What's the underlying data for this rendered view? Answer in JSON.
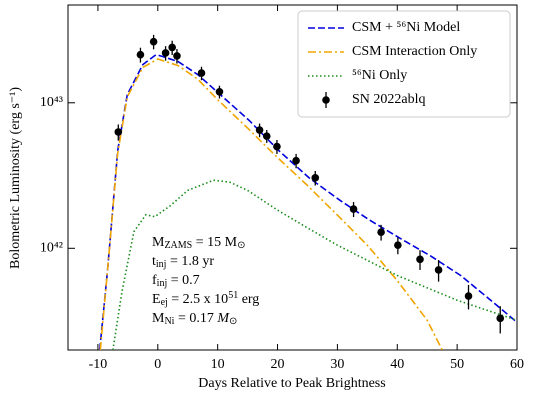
{
  "chart_data": {
    "type": "line",
    "xlabel": "Days Relative to Peak Brightness",
    "ylabel": "Bolometric Luminosity (erg s⁻¹)",
    "xlim": [
      -15,
      60
    ],
    "xticks": [
      -10,
      0,
      10,
      20,
      30,
      40,
      50,
      60
    ],
    "ylim": [
      2e+41,
      4.7e+43
    ],
    "yscale": "log",
    "yticks": [
      {
        "value": 1e+42,
        "label": "10⁴²"
      },
      {
        "value": 1e+43,
        "label": "10⁴³"
      }
    ],
    "legend": "upper right",
    "series": [
      {
        "name": "CSM + ⁵⁶Ni Model",
        "type": "line",
        "style": "dashed",
        "color": "#0000dd",
        "x": [
          -9.7,
          -8.4,
          -6.7,
          -5.1,
          -2.5,
          -0.3,
          0.8,
          3.4,
          6.7,
          10.1,
          15.2,
          20.2,
          25.3,
          30.4,
          35.4,
          40.5,
          45.5,
          50.6,
          55.6,
          60
        ],
        "values": [
          2e+41,
          7e+41,
          4.7e+42,
          1.14e+43,
          1.83e+43,
          2.14e+43,
          2.08e+43,
          1.92e+43,
          1.56e+43,
          1.17e+43,
          7.6e+42,
          4.7e+42,
          3.04e+42,
          2.14e+42,
          1.56e+42,
          1.17e+42,
          8.9e+41,
          6.5e+41,
          4.4e+41,
          3.1e+41
        ]
      },
      {
        "name": "CSM Interaction Only",
        "type": "line",
        "style": "dashdot",
        "color": "#f0a500",
        "x": [
          -9.6,
          -8.4,
          -6.7,
          -5.1,
          -2.5,
          0,
          3.4,
          6.7,
          10,
          15,
          20,
          25,
          30,
          35,
          40,
          45,
          47.5
        ],
        "values": [
          2e+41,
          7e+41,
          4.5e+42,
          1.1e+43,
          1.75e+43,
          2e+43,
          1.8e+43,
          1.45e+43,
          1.05e+43,
          6.7e+42,
          4.2e+42,
          2.7e+42,
          1.69e+42,
          1.05e+42,
          6e+41,
          3.2e+41,
          2e+41
        ]
      },
      {
        "name": "⁵⁶Ni Only",
        "type": "line",
        "style": "dotted",
        "color": "#1a8a1a",
        "x": [
          -7.5,
          -6,
          -4,
          -2,
          -0.5,
          2,
          5,
          9.3,
          12,
          15,
          20,
          25,
          30,
          40,
          50,
          60
        ],
        "values": [
          2e+41,
          5e+41,
          1.3e+42,
          1.7e+42,
          1.65e+42,
          1.95e+42,
          2.5e+42,
          2.94e+42,
          2.85e+42,
          2.5e+42,
          1.83e+42,
          1.38e+42,
          1.05e+42,
          6.5e+41,
          4.4e+41,
          3.2e+41
        ]
      },
      {
        "name": "SN 2022ablq",
        "type": "scatter",
        "color": "#000000",
        "x": [
          -6.6,
          -2.9,
          -0.7,
          1.3,
          2.4,
          3.2,
          7.3,
          10.3,
          17,
          18.2,
          19.9,
          23.1,
          26.3,
          32.7,
          37.3,
          40.1,
          43.8,
          46.9,
          51.9,
          57.2
        ],
        "values": [
          6.3e+42,
          2.14e+43,
          2.63e+43,
          2.2e+43,
          2.4e+43,
          2.1e+43,
          1.6e+43,
          1.19e+43,
          6.5e+42,
          5.9e+42,
          5e+42,
          4e+42,
          3.05e+42,
          1.86e+42,
          1.29e+42,
          1.05e+42,
          8.4e+41,
          7.1e+41,
          4.7e+41,
          3.3e+41
        ],
        "errors": [
          8e+41,
          2.5e+42,
          3e+42,
          2.5e+42,
          2.7e+42,
          2.4e+42,
          1.7e+42,
          1.2e+42,
          7e+41,
          6e+41,
          5.5e+41,
          4.5e+41,
          3.5e+41,
          2.2e+41,
          1.6e+41,
          1.4e+41,
          1.3e+41,
          1.2e+41,
          9e+40,
          7e+40
        ]
      }
    ],
    "annotation": [
      [
        {
          "t": "M"
        },
        {
          "t": "ZAMS",
          "s": "sub"
        },
        {
          "t": " = 15 M"
        },
        {
          "t": "⊙",
          "s": "sub"
        }
      ],
      [
        {
          "t": "t"
        },
        {
          "t": "inj",
          "s": "sub"
        },
        {
          "t": " = 1.8 yr"
        }
      ],
      [
        {
          "t": "f"
        },
        {
          "t": "inj",
          "s": "sub"
        },
        {
          "t": " = 0.7"
        }
      ],
      [
        {
          "t": "E"
        },
        {
          "t": "ej",
          "s": "sub"
        },
        {
          "t": " = 2.5 x 10"
        },
        {
          "t": "51",
          "s": "sup"
        },
        {
          "t": " erg"
        }
      ],
      [
        {
          "t": "M"
        },
        {
          "t": "Ni",
          "s": "sub"
        },
        {
          "t": " = 0.17 "
        },
        {
          "t": "M",
          "s": "it"
        },
        {
          "t": "⊙",
          "s": "sub"
        }
      ]
    ]
  }
}
